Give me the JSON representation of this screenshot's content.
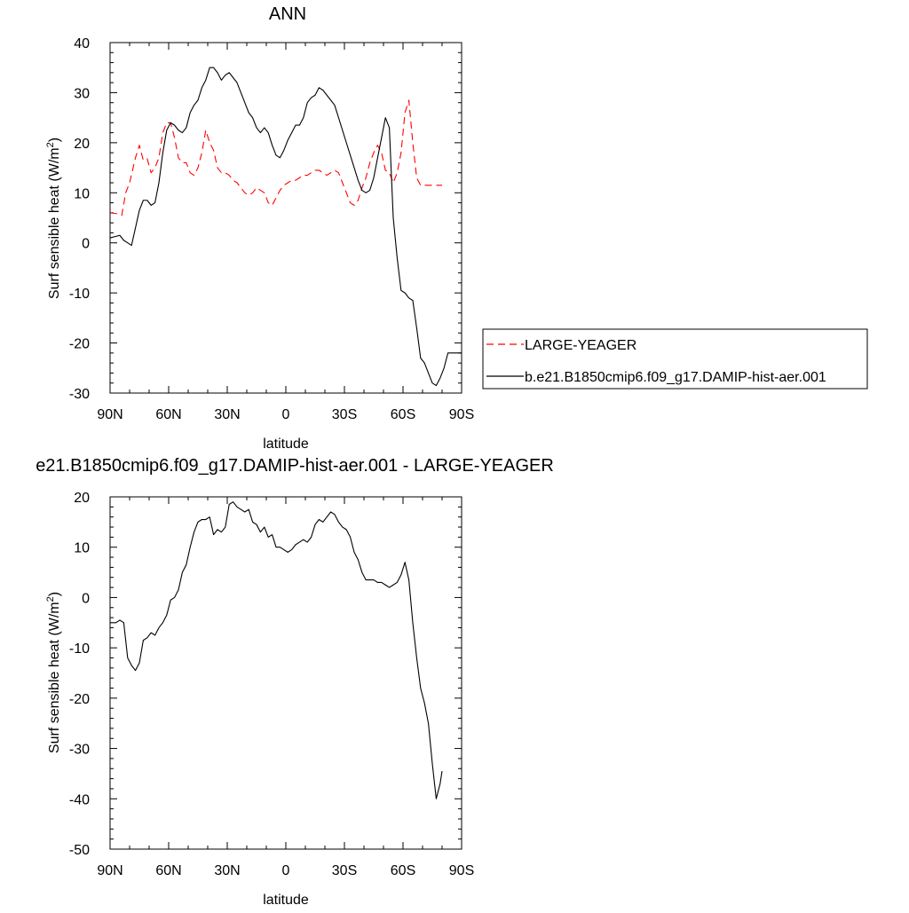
{
  "chart_data": [
    {
      "type": "line",
      "title": "ANN",
      "xlabel": "latitude",
      "ylabel": "Surf sensible heat (W/m²)",
      "ylabel_main": "Surf sensible heat (W/m",
      "ylabel_sup": "2",
      "ylabel_end": ")",
      "xlim": [
        90,
        -90
      ],
      "ylim": [
        -30,
        40
      ],
      "xticks": [
        90,
        60,
        30,
        0,
        -30,
        -60,
        -90
      ],
      "xtick_labels": [
        "90N",
        "60N",
        "30N",
        "0",
        "30S",
        "60S",
        "90S"
      ],
      "yticks": [
        40,
        30,
        20,
        10,
        0,
        -10,
        -20,
        -30
      ],
      "ytick_labels": [
        "40",
        "30",
        "20",
        "10",
        "0",
        "-10",
        "-20",
        "-30"
      ],
      "legend": "right-outside",
      "series": [
        {
          "name": "LARGE-YEAGER",
          "color": "#ff0000",
          "style": "dashed",
          "x": [
            90,
            86,
            84,
            82,
            80,
            77,
            75,
            73,
            71,
            69,
            67,
            65,
            63,
            61,
            59,
            57,
            55,
            53,
            51,
            49,
            47,
            45,
            43,
            41,
            39,
            37,
            35,
            33,
            31,
            29,
            27,
            25,
            23,
            21,
            19,
            17,
            15,
            13,
            11,
            9,
            7,
            5,
            3,
            1,
            -1,
            -3,
            -5,
            -7,
            -9,
            -11,
            -13,
            -15,
            -17,
            -19,
            -21,
            -23,
            -25,
            -27,
            -29,
            -31,
            -33,
            -35,
            -37,
            -39,
            -41,
            -43,
            -45,
            -47,
            -49,
            -51,
            -53,
            -55,
            -57,
            -59,
            -61,
            -63,
            -65,
            -67,
            -69,
            -71,
            -73,
            -75,
            -77,
            -79,
            -80
          ],
          "y": [
            6,
            5.8,
            5.5,
            10,
            12,
            17,
            19.5,
            16.5,
            16.8,
            14,
            15,
            17,
            22,
            24,
            24,
            21,
            17,
            16,
            16,
            14,
            13.5,
            15,
            18,
            22.5,
            20,
            18.5,
            15,
            14,
            14,
            13.5,
            12.5,
            12,
            11,
            10,
            9.5,
            10,
            11,
            10.5,
            10,
            8,
            7.5,
            9,
            10.5,
            11.5,
            12,
            12.5,
            12.5,
            13,
            13.5,
            13.5,
            14,
            14.5,
            14.5,
            14,
            13.5,
            14,
            14.5,
            14,
            12,
            10,
            8,
            7.5,
            8.5,
            11,
            13,
            16,
            18,
            19.5,
            18,
            14.5,
            14,
            12,
            14,
            18,
            26,
            28.5,
            20,
            13,
            11.5,
            11.5,
            11.5,
            11.5,
            11.5,
            11.5,
            11.5
          ]
        },
        {
          "name": "b.e21.B1850cmip6.f09_g17.DAMIP-hist-aer.001",
          "color": "#000000",
          "style": "solid",
          "x": [
            90,
            87,
            85,
            83,
            81,
            79,
            77,
            75,
            73,
            71,
            69,
            67,
            65,
            63,
            61,
            59,
            57,
            55,
            53,
            51,
            49,
            47,
            45,
            43,
            41,
            39,
            37,
            35,
            33,
            31,
            29,
            27,
            25,
            23,
            21,
            19,
            17,
            15,
            13,
            11,
            9,
            7,
            5,
            3,
            1,
            -1,
            -3,
            -5,
            -7,
            -9,
            -11,
            -13,
            -15,
            -17,
            -19,
            -21,
            -23,
            -25,
            -27,
            -29,
            -31,
            -33,
            -35,
            -37,
            -39,
            -41,
            -43,
            -45,
            -47,
            -49,
            -51,
            -53,
            -55,
            -57,
            -59,
            -61,
            -63,
            -65,
            -67,
            -69,
            -71,
            -73,
            -75,
            -77,
            -79,
            -81,
            -83,
            -85,
            -87,
            -88,
            -89,
            -90
          ],
          "y": [
            1,
            1.3,
            1.5,
            0.5,
            0,
            -0.5,
            3,
            6.5,
            8.5,
            8.5,
            7.5,
            8,
            12,
            18,
            22.5,
            24,
            23.5,
            22.5,
            22,
            23,
            26,
            27.5,
            28.5,
            31,
            32.5,
            35,
            35,
            34,
            32.5,
            33.5,
            34,
            33,
            32,
            30,
            28,
            26,
            25,
            23,
            22,
            23,
            22,
            19.5,
            17.5,
            17,
            18.5,
            20.5,
            22,
            23.5,
            23.5,
            25,
            28,
            29,
            29.5,
            31,
            30.5,
            29.5,
            28.5,
            27.5,
            25,
            22.5,
            20,
            17.5,
            15,
            12.5,
            10.5,
            10,
            10.5,
            13,
            17,
            21,
            25,
            23,
            5,
            -3,
            -9.5,
            -10,
            -11,
            -11.5,
            -17,
            -23,
            -24,
            -26,
            -28,
            -28.5,
            -27,
            -25,
            -22,
            -22,
            -22,
            -22,
            -22,
            -22
          ]
        }
      ]
    },
    {
      "type": "line",
      "title": "e21.B1850cmip6.f09_g17.DAMIP-hist-aer.001 - LARGE-YEAGER",
      "xlabel": "latitude",
      "ylabel": "Surf sensible heat (W/m²)",
      "ylabel_main": "Surf sensible heat (W/m",
      "ylabel_sup": "2",
      "ylabel_end": ")",
      "xlim": [
        90,
        -90
      ],
      "ylim": [
        -50,
        20
      ],
      "xticks": [
        90,
        60,
        30,
        0,
        -30,
        -60,
        -90
      ],
      "xtick_labels": [
        "90N",
        "60N",
        "30N",
        "0",
        "30S",
        "60S",
        "90S"
      ],
      "yticks": [
        20,
        10,
        0,
        -10,
        -20,
        -30,
        -40,
        -50
      ],
      "ytick_labels": [
        "20",
        "10",
        "0",
        "-10",
        "-20",
        "-30",
        "-40",
        "-50"
      ],
      "series": [
        {
          "color": "#000000",
          "style": "solid",
          "x": [
            90,
            87,
            85,
            83,
            81,
            79,
            77,
            75,
            73,
            71,
            69,
            67,
            65,
            63,
            61,
            59,
            57,
            55,
            53,
            51,
            49,
            47,
            45,
            43,
            41,
            39,
            37,
            35,
            33,
            31,
            29,
            27,
            25,
            23,
            21,
            19,
            17,
            15,
            13,
            11,
            9,
            7,
            5,
            3,
            1,
            -1,
            -3,
            -5,
            -7,
            -9,
            -11,
            -13,
            -15,
            -17,
            -19,
            -21,
            -23,
            -25,
            -27,
            -29,
            -31,
            -33,
            -35,
            -37,
            -39,
            -41,
            -43,
            -45,
            -47,
            -49,
            -51,
            -53,
            -55,
            -57,
            -59,
            -61,
            -63,
            -65,
            -67,
            -69,
            -71,
            -73,
            -75,
            -77,
            -79,
            -80
          ],
          "y": [
            -5,
            -5,
            -4.5,
            -5,
            -12,
            -13.5,
            -14.5,
            -13,
            -8.5,
            -8,
            -7,
            -7.5,
            -6,
            -5,
            -3.5,
            -0.5,
            0,
            1.5,
            5,
            6.5,
            10,
            13,
            15,
            15.5,
            15.5,
            16,
            12.5,
            13.5,
            13,
            14,
            18.5,
            19,
            18,
            17.5,
            17,
            17.5,
            15,
            14.5,
            13,
            14,
            12,
            12.5,
            10,
            10,
            9.5,
            9,
            9.5,
            10.5,
            11,
            11.5,
            11,
            12,
            14.5,
            15.5,
            15,
            16,
            17,
            16.5,
            15,
            14,
            13.5,
            12,
            9,
            7.5,
            5,
            3.5,
            3.5,
            3.5,
            3,
            3,
            2.5,
            2,
            2.5,
            3,
            4.5,
            7,
            3.5,
            -5,
            -12,
            -18,
            -21,
            -25,
            -33,
            -40,
            -37,
            -34.5
          ]
        }
      ]
    }
  ]
}
